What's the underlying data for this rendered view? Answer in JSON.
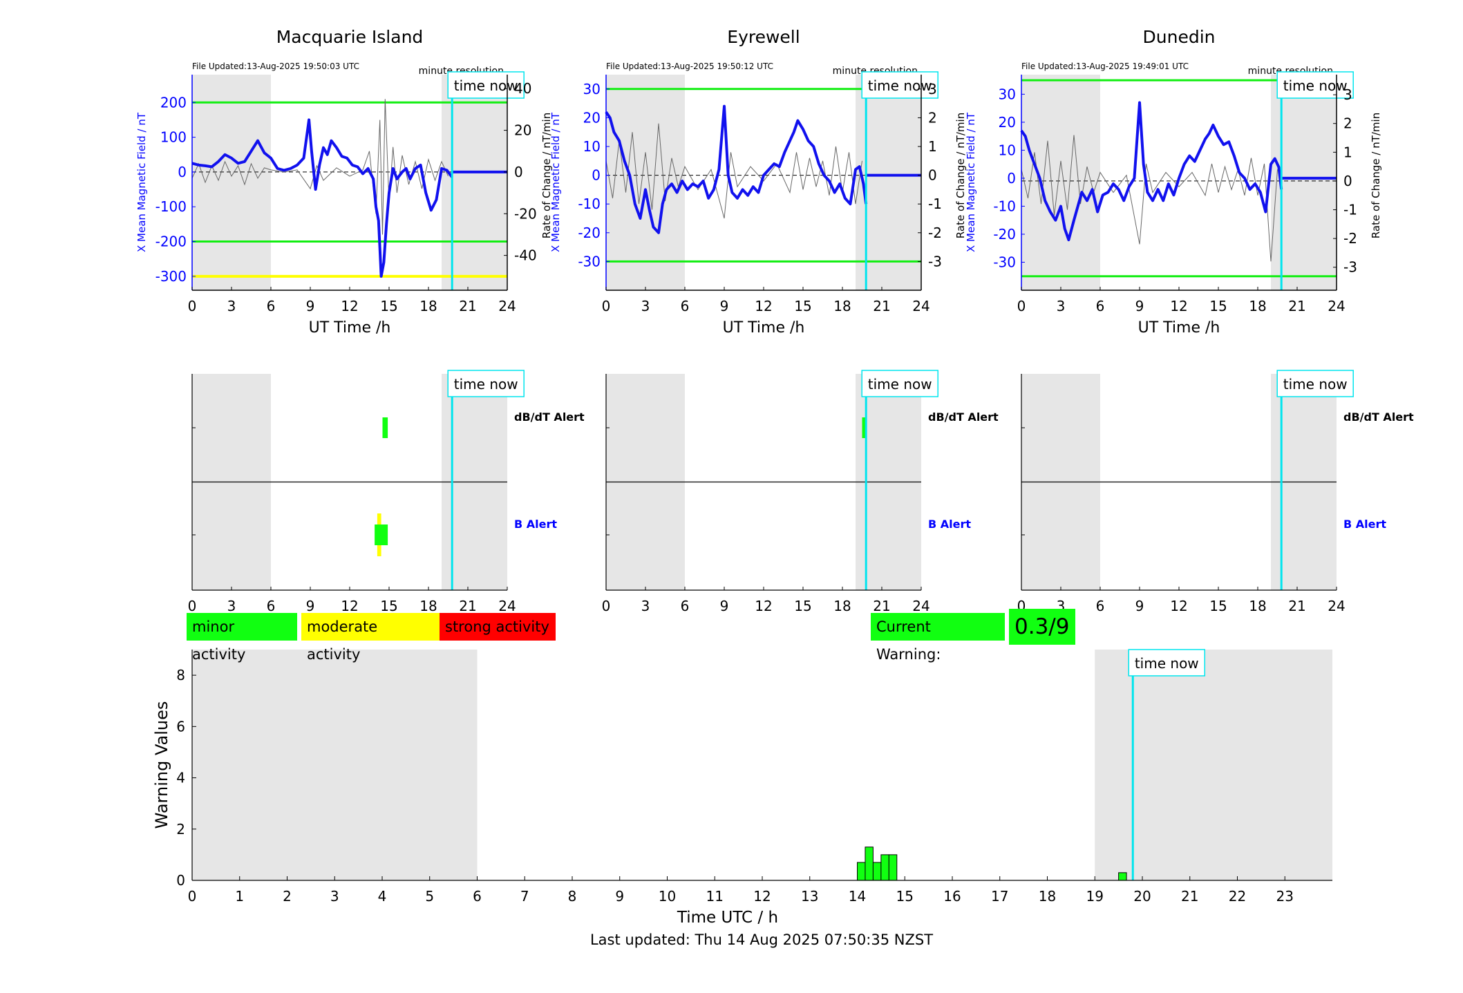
{
  "panels": [
    {
      "station": "Macquarie Island",
      "file_updated": "File Updated:13-Aug-2025 19:50:03 UTC",
      "resolution": "minute resolution",
      "left_ylabel": "X Mean Magnetic Field / nT",
      "right_ylabel": "Rate of Change / nT/min",
      "left_ylim": [
        -340,
        280
      ],
      "left_ticks": [
        200,
        100,
        0,
        -100,
        -200,
        -300
      ],
      "right_ylim": [
        -56.7,
        46.7
      ],
      "right_ticks": [
        40,
        20,
        0,
        -20,
        -40
      ],
      "green_levels": [
        200,
        -200
      ],
      "yellow_level": -300,
      "series_x_mean_nT": {
        "x": [
          0,
          0.5,
          1,
          1.5,
          2,
          2.5,
          3,
          3.5,
          4,
          4.5,
          5,
          5.5,
          6,
          6.5,
          7,
          7.5,
          8,
          8.5,
          8.9,
          9.1,
          9.4,
          9.7,
          10,
          10.3,
          10.6,
          11,
          11.4,
          11.8,
          12.2,
          12.6,
          13,
          13.4,
          13.8,
          14.0,
          14.2,
          14.4,
          14.6,
          14.8,
          15,
          15.3,
          15.6,
          16,
          16.3,
          16.6,
          17,
          17.4,
          17.8,
          18.2,
          18.6,
          19,
          19.4,
          19.8
        ],
        "y": [
          25,
          20,
          18,
          15,
          30,
          50,
          40,
          25,
          30,
          60,
          90,
          55,
          40,
          10,
          5,
          10,
          20,
          40,
          150,
          60,
          -50,
          20,
          70,
          50,
          90,
          70,
          45,
          40,
          20,
          15,
          -5,
          10,
          -20,
          -100,
          -140,
          -300,
          -260,
          -150,
          -60,
          10,
          -20,
          0,
          10,
          -20,
          10,
          20,
          -60,
          -110,
          -80,
          10,
          5,
          -15
        ]
      },
      "series_x_mean_flat": {
        "x": [
          19.8,
          24
        ],
        "y": [
          0,
          0
        ]
      },
      "series_rate_nT_per_min": {
        "x": [
          0,
          0.5,
          1,
          1.5,
          2,
          2.5,
          3,
          3.5,
          4,
          4.5,
          5,
          5.5,
          6,
          7,
          8,
          9,
          9.5,
          10,
          11,
          12,
          13,
          13.5,
          14,
          14.3,
          14.5,
          14.7,
          15,
          15.3,
          15.6,
          16,
          16.5,
          17,
          17.5,
          18,
          18.5,
          19,
          19.5
        ],
        "y": [
          -3,
          4,
          -5,
          3,
          -4,
          5,
          -2,
          3,
          -6,
          4,
          -3,
          2,
          1,
          0,
          1,
          -8,
          3,
          -4,
          2,
          -2,
          1,
          10,
          -20,
          25,
          -30,
          35,
          -15,
          12,
          -10,
          8,
          -6,
          5,
          -8,
          6,
          -4,
          5,
          -2
        ]
      },
      "time_now_h": 19.8,
      "time_now_label": "time now",
      "alert_dbdt": {
        "label": "dB/dT Alert",
        "blocks": [
          {
            "start": 14.5,
            "end": 14.9,
            "color": "#11ff11",
            "level": 1
          }
        ]
      },
      "alert_b": {
        "label": "B Alert",
        "blocks": [
          {
            "start": 14.1,
            "end": 14.4,
            "color": "#ffff00",
            "level": 2
          },
          {
            "start": 13.9,
            "end": 14.9,
            "color": "#11ff11",
            "level": 1
          }
        ]
      }
    },
    {
      "station": "Eyrewell",
      "file_updated": "File Updated:13-Aug-2025 19:50:12 UTC",
      "resolution": "minute resolution",
      "left_ylabel": "X Mean Magnetic Field / nT",
      "right_ylabel": "Rate of Change / nT/min",
      "left_ylim": [
        -40,
        35
      ],
      "left_ticks": [
        30,
        20,
        10,
        0,
        -10,
        -20,
        -30
      ],
      "right_ylim": [
        -4,
        3.5
      ],
      "right_ticks": [
        3,
        2,
        1,
        0,
        -1,
        -2,
        -3
      ],
      "green_levels": [
        30,
        -30
      ],
      "yellow_level": null,
      "series_x_mean_nT": {
        "x": [
          0,
          0.3,
          0.6,
          1,
          1.4,
          1.8,
          2.2,
          2.6,
          3,
          3.3,
          3.6,
          4,
          4.3,
          4.6,
          5,
          5.4,
          5.8,
          6.2,
          6.6,
          7,
          7.4,
          7.8,
          8.2,
          8.6,
          9,
          9.3,
          9.6,
          10,
          10.4,
          10.8,
          11.2,
          11.6,
          12,
          12.4,
          12.8,
          13.2,
          13.6,
          14,
          14.3,
          14.6,
          15,
          15.4,
          15.8,
          16.2,
          16.6,
          17,
          17.4,
          17.8,
          18.2,
          18.6,
          19,
          19.3,
          19.6,
          19.8
        ],
        "y": [
          22,
          20,
          15,
          12,
          5,
          0,
          -10,
          -15,
          -5,
          -12,
          -18,
          -20,
          -10,
          -5,
          -3,
          -6,
          -2,
          -5,
          -3,
          -4,
          -2,
          -8,
          -5,
          2,
          24,
          0,
          -6,
          -8,
          -5,
          -7,
          -4,
          -6,
          0,
          2,
          4,
          3,
          8,
          12,
          15,
          19,
          16,
          12,
          10,
          4,
          0,
          -2,
          -6,
          -3,
          -8,
          -10,
          2,
          3,
          -3,
          -10
        ]
      },
      "series_x_mean_flat": {
        "x": [
          19.8,
          24
        ],
        "y": [
          0,
          0
        ]
      },
      "series_rate_nT_per_min": {
        "x": [
          0,
          0.5,
          1,
          1.5,
          2,
          2.5,
          3,
          3.5,
          4,
          4.5,
          5,
          5.5,
          6,
          7,
          8,
          9,
          9.5,
          10,
          11,
          12,
          13,
          14,
          14.5,
          15,
          15.5,
          16,
          16.5,
          17,
          17.5,
          18,
          18.5,
          19,
          19.5
        ],
        "y": [
          0.5,
          -0.8,
          1.2,
          -0.6,
          1.5,
          -1.0,
          0.8,
          -1.2,
          1.8,
          -0.9,
          0.6,
          -0.4,
          0.3,
          -0.5,
          0.2,
          -1.5,
          0.8,
          -0.4,
          0.3,
          -0.2,
          0.4,
          -0.6,
          0.8,
          -0.5,
          0.6,
          -0.4,
          0.5,
          -0.7,
          1.0,
          -0.6,
          0.8,
          -1.0,
          0.5
        ]
      },
      "time_now_h": 19.8,
      "time_now_label": "time now",
      "alert_dbdt": {
        "label": "dB/dT Alert",
        "blocks": [
          {
            "start": 19.5,
            "end": 19.8,
            "color": "#11ff11",
            "level": 1
          }
        ]
      },
      "alert_b": {
        "label": "B Alert",
        "blocks": []
      }
    },
    {
      "station": "Dunedin",
      "file_updated": "File Updated:13-Aug-2025 19:49:01 UTC",
      "resolution": "minute resolution",
      "left_ylabel": "X Mean Magnetic Field / nT",
      "right_ylabel": "Rate of Change / nT/min",
      "left_ylim": [
        -40,
        37
      ],
      "left_ticks": [
        30,
        20,
        10,
        0,
        -10,
        -20,
        -30
      ],
      "right_ylim": [
        -3.8,
        3.7
      ],
      "right_ticks": [
        3,
        2,
        1,
        0,
        -1,
        -2,
        -3
      ],
      "green_levels": [
        35,
        -35
      ],
      "yellow_level": null,
      "series_x_mean_nT": {
        "x": [
          0,
          0.3,
          0.6,
          1,
          1.4,
          1.8,
          2.2,
          2.6,
          3,
          3.3,
          3.6,
          4,
          4.3,
          4.6,
          5,
          5.4,
          5.8,
          6.2,
          6.6,
          7,
          7.4,
          7.8,
          8.2,
          8.6,
          9,
          9.3,
          9.6,
          10,
          10.4,
          10.8,
          11.2,
          11.6,
          12,
          12.4,
          12.8,
          13.2,
          13.6,
          14,
          14.3,
          14.6,
          15,
          15.4,
          15.8,
          16.2,
          16.6,
          17,
          17.4,
          17.8,
          18.2,
          18.6,
          19,
          19.3,
          19.6,
          19.8
        ],
        "y": [
          17,
          15,
          10,
          5,
          0,
          -8,
          -12,
          -15,
          -10,
          -18,
          -22,
          -15,
          -10,
          -5,
          -8,
          -4,
          -12,
          -6,
          -5,
          -2,
          -4,
          -8,
          -3,
          0,
          27,
          5,
          -5,
          -8,
          -4,
          -8,
          -2,
          -6,
          0,
          5,
          8,
          6,
          10,
          14,
          16,
          19,
          15,
          12,
          13,
          8,
          2,
          0,
          -4,
          -2,
          -5,
          -12,
          5,
          7,
          4,
          -4
        ]
      },
      "series_x_mean_flat": {
        "x": [
          19.8,
          24
        ],
        "y": [
          0,
          0
        ]
      },
      "series_rate_nT_per_min": {
        "x": [
          0,
          0.5,
          1,
          1.5,
          2,
          2.5,
          3,
          3.5,
          4,
          4.5,
          5,
          5.5,
          6,
          7,
          8,
          9,
          9.5,
          10,
          11,
          12,
          13,
          14,
          14.5,
          15,
          15.5,
          16,
          16.5,
          17,
          17.5,
          18,
          18.5,
          19,
          19.5
        ],
        "y": [
          0.4,
          -0.6,
          1.0,
          -0.8,
          1.4,
          -1.2,
          0.7,
          -1.0,
          1.6,
          -0.8,
          0.5,
          -0.4,
          0.3,
          -0.4,
          0.2,
          -2.2,
          0.6,
          -0.4,
          0.3,
          -0.2,
          0.3,
          -0.5,
          0.6,
          -0.4,
          0.5,
          -0.3,
          0.4,
          -0.5,
          0.8,
          -0.5,
          0.6,
          -2.8,
          0.4
        ]
      },
      "time_now_h": 19.8,
      "time_now_label": "time now",
      "alert_dbdt": {
        "label": "dB/dT Alert",
        "blocks": []
      },
      "alert_b": {
        "label": "B Alert",
        "blocks": []
      }
    }
  ],
  "xlabel_top": "UT Time /h",
  "x_ticks_top": [
    0,
    3,
    6,
    9,
    12,
    15,
    18,
    21,
    24
  ],
  "night_shade": [
    [
      0,
      6
    ],
    [
      19,
      24
    ]
  ],
  "legend": [
    {
      "label": "minor activity",
      "color": "#11ff11"
    },
    {
      "label": "moderate activity",
      "color": "#ffff00"
    },
    {
      "label": "strong activity",
      "color": "#ff0000"
    }
  ],
  "current_warning": {
    "label": "Current Warning:",
    "value": "0.3/9",
    "color": "#11ff11"
  },
  "chart_data": {
    "type": "bar",
    "title": "",
    "xlabel": "Time UTC / h",
    "ylabel": "Warning Values",
    "xlim": [
      0,
      24
    ],
    "ylim": [
      0,
      9
    ],
    "x_ticks": [
      0,
      1,
      2,
      3,
      4,
      5,
      6,
      7,
      8,
      9,
      10,
      11,
      12,
      13,
      14,
      15,
      16,
      17,
      18,
      19,
      20,
      21,
      22,
      23
    ],
    "y_ticks": [
      0,
      2,
      4,
      6,
      8
    ],
    "night_shade": [
      [
        0,
        6
      ],
      [
        19,
        24
      ]
    ],
    "bar_width_h": 0.1667,
    "bars": [
      {
        "x": 14.0,
        "value": 0.7
      },
      {
        "x": 14.1667,
        "value": 1.3
      },
      {
        "x": 14.3333,
        "value": 0.7
      },
      {
        "x": 14.5,
        "value": 1.0
      },
      {
        "x": 14.6667,
        "value": 1.0
      },
      {
        "x": 19.5,
        "value": 0.3
      }
    ],
    "bar_color": "#11ff11",
    "time_now_h": 19.8,
    "time_now_label": "time now"
  },
  "last_updated": "Last updated: Thu 14 Aug 2025 07:50:35 NZST"
}
